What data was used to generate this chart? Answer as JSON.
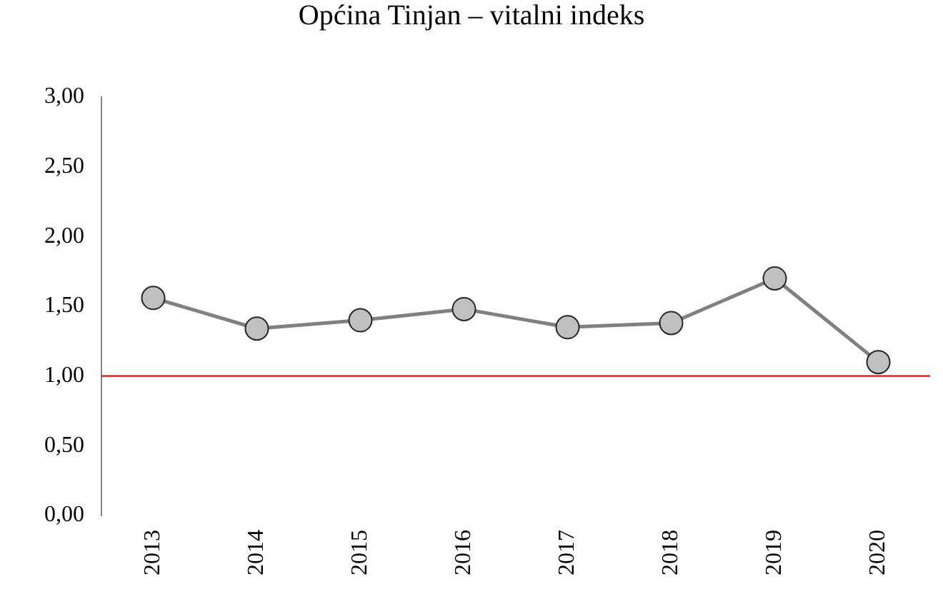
{
  "chart_data": {
    "type": "line",
    "title": "Općina Tinjan – vitalni indeks",
    "categories": [
      "2013",
      "2014",
      "2015",
      "2016",
      "2017",
      "2018",
      "2019",
      "2020"
    ],
    "series": [
      {
        "color": "#808080",
        "values": [
          1.56,
          1.34,
          1.4,
          1.48,
          1.35,
          1.38,
          1.7,
          1.1
        ]
      }
    ],
    "ylim": [
      0,
      3
    ],
    "yticks": [
      {
        "value": 0,
        "label": "0,00"
      },
      {
        "value": 0.5,
        "label": "0,50"
      },
      {
        "value": 1,
        "label": "1,00"
      },
      {
        "value": 1.5,
        "label": "1,50"
      },
      {
        "value": 2,
        "label": "2,00"
      },
      {
        "value": 2.5,
        "label": "2,50"
      },
      {
        "value": 3,
        "label": "3,00"
      }
    ],
    "ref_lines": [
      {
        "axis": "y",
        "value": 1,
        "color": "#ff0000"
      }
    ],
    "marker": "circle",
    "line_style": "solid",
    "grid": false,
    "legend": false
  }
}
